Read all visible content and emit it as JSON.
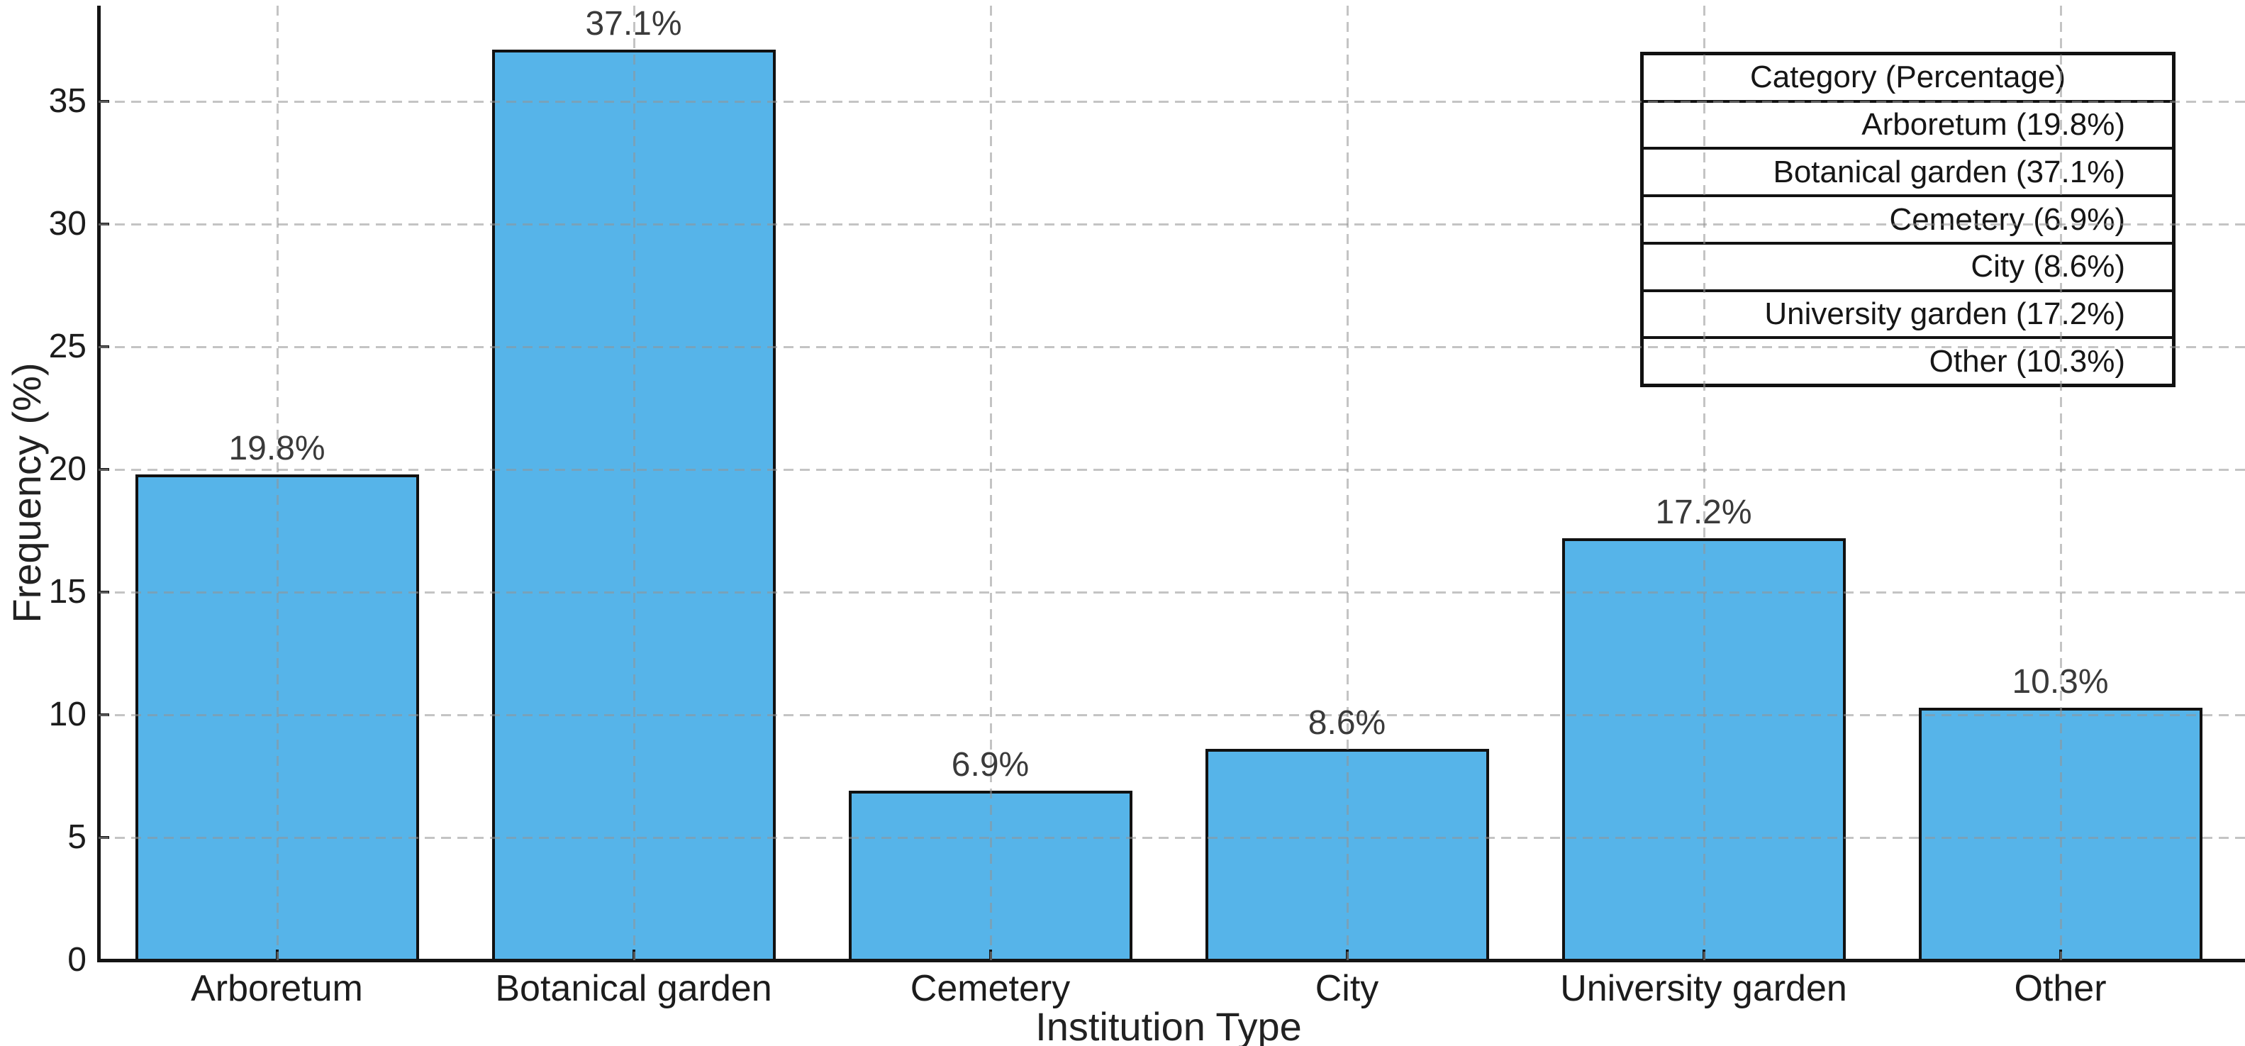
{
  "figure": {
    "background": "#ffffff"
  },
  "chart_data": {
    "type": "bar",
    "title": "",
    "xlabel": "Institution Type",
    "ylabel": "Frequency (%)",
    "categories": [
      "Arboretum",
      "Botanical garden",
      "Cemetery",
      "City",
      "University garden",
      "Other"
    ],
    "values": [
      19.8,
      37.1,
      6.9,
      8.6,
      17.2,
      10.3
    ],
    "bar_value_labels": [
      "19.8%",
      "37.1%",
      "6.9%",
      "8.6%",
      "17.2%",
      "10.3%"
    ],
    "yticks": [
      0,
      5,
      10,
      15,
      20,
      25,
      30,
      35
    ],
    "ylim": [
      0,
      38.9
    ],
    "grid": {
      "visible": true,
      "style": "dashed",
      "color": "#c9c9c9"
    },
    "bar_color": "#56B4E9",
    "bar_edge_color": "#111111",
    "legend_position": "top-right",
    "legend_table": {
      "header": "Category (Percentage)",
      "rows": [
        "Arboretum (19.8%)",
        "Botanical garden (37.1%)",
        "Cemetery (6.9%)",
        "City (8.6%)",
        "University garden (17.2%)",
        "Other (10.3%)"
      ]
    }
  }
}
